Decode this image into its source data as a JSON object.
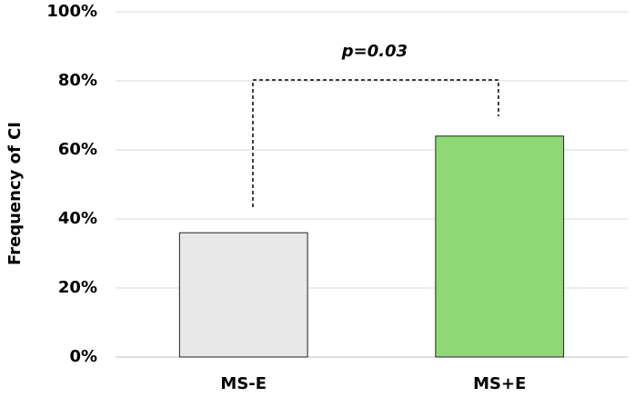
{
  "chart_data": {
    "type": "bar",
    "y_label": "Frequency of CI",
    "annotation": "p=0.03",
    "categories": [
      "MS-E",
      "MS+E"
    ],
    "values": [
      36,
      64
    ],
    "colors": [
      "#e8e8e8",
      "#8fd975"
    ],
    "ylim": [
      0,
      100
    ],
    "yticks": [
      {
        "value": 0,
        "label": "0%"
      },
      {
        "value": 20,
        "label": "20%"
      },
      {
        "value": 40,
        "label": "40%"
      },
      {
        "value": 60,
        "label": "60%"
      },
      {
        "value": 80,
        "label": "80%"
      },
      {
        "value": 100,
        "label": "100%"
      }
    ],
    "grid": true
  }
}
